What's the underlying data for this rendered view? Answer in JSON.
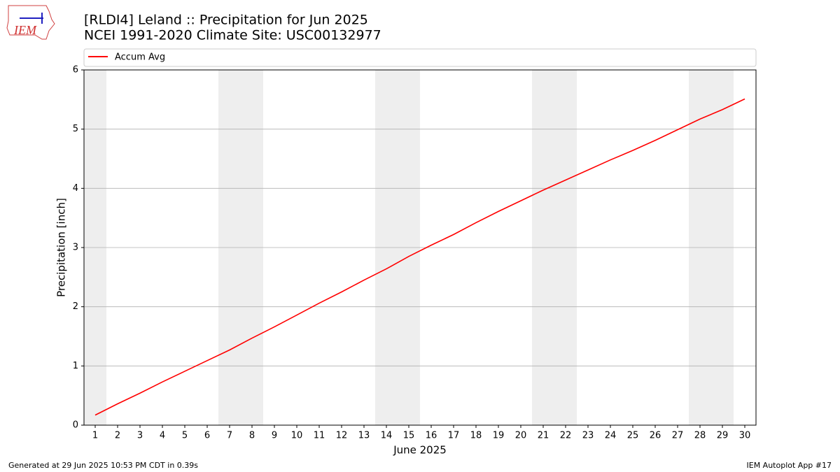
{
  "chart_data": {
    "type": "line",
    "title": "[RLDI4] Leland :: Precipitation for Jun 2025",
    "subtitle": "NCEI 1991-2020 Climate Site: USC00132977",
    "x_label": "June 2025",
    "y_label": "Precipitation [inch]",
    "x": [
      1,
      2,
      3,
      4,
      5,
      6,
      7,
      8,
      9,
      10,
      11,
      12,
      13,
      14,
      15,
      16,
      17,
      18,
      19,
      20,
      21,
      22,
      23,
      24,
      25,
      26,
      27,
      28,
      29,
      30
    ],
    "series": [
      {
        "name": "Accum Avg",
        "color": "#ff0000",
        "values": [
          0.17,
          0.36,
          0.54,
          0.73,
          0.91,
          1.09,
          1.27,
          1.47,
          1.66,
          1.86,
          2.06,
          2.25,
          2.45,
          2.64,
          2.85,
          3.04,
          3.22,
          3.42,
          3.61,
          3.79,
          3.97,
          4.14,
          4.31,
          4.48,
          4.64,
          4.81,
          4.99,
          5.17,
          5.33,
          5.51
        ]
      }
    ],
    "xlim": [
      0.5,
      30.5
    ],
    "xticks": [
      1,
      2,
      3,
      4,
      5,
      6,
      7,
      8,
      9,
      10,
      11,
      12,
      13,
      14,
      15,
      16,
      17,
      18,
      19,
      20,
      21,
      22,
      23,
      24,
      25,
      26,
      27,
      28,
      29,
      30
    ],
    "ylim": [
      0,
      6
    ],
    "yticks": [
      0,
      1,
      2,
      3,
      4,
      5,
      6
    ],
    "grid": true,
    "legend": "top"
  },
  "logo": "IEM",
  "footer": {
    "left": "Generated at 29 Jun 2025 10:53 PM CDT in 0.39s",
    "right": "IEM Autoplot App #17"
  }
}
